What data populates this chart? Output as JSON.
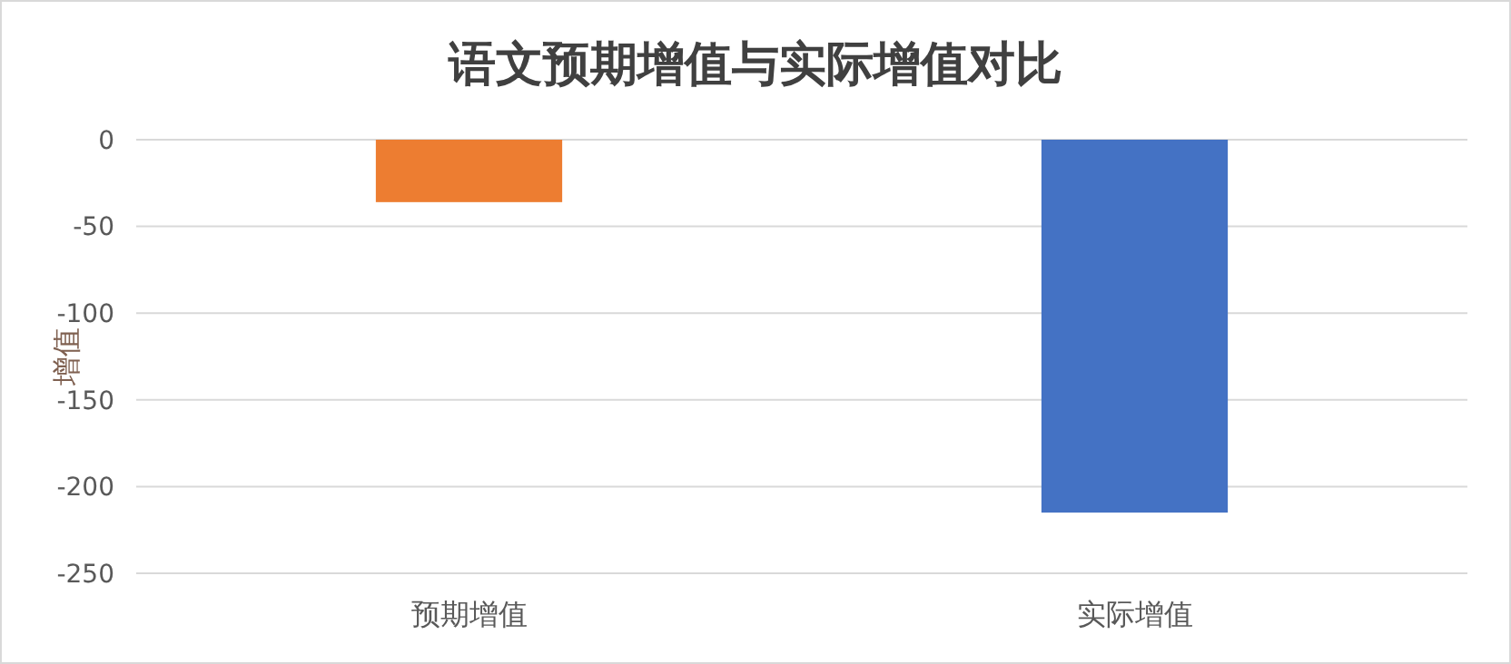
{
  "chart_data": {
    "type": "bar",
    "title": "语文预期增值与实际增值对比",
    "ylabel": "增值",
    "categories": [
      "预期增值",
      "实际增值"
    ],
    "values": [
      -36,
      -215
    ],
    "colors": [
      "#ed7d31",
      "#4472c4"
    ],
    "ylim": [
      -250,
      0
    ],
    "yticks": [
      -250,
      -200,
      -150,
      -100,
      -50,
      0
    ],
    "grid": "y"
  }
}
